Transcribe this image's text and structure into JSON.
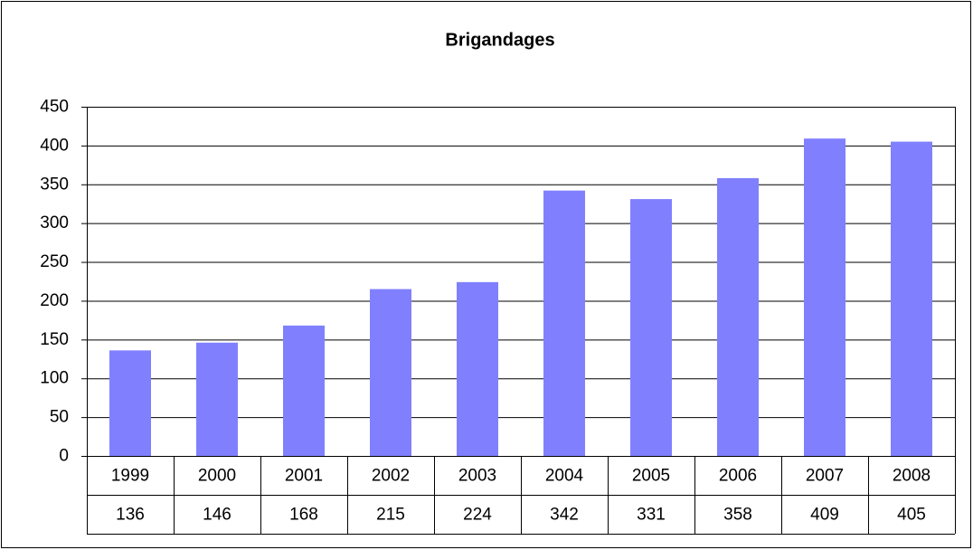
{
  "chart_data": {
    "type": "bar",
    "title": "Brigandages",
    "categories": [
      "1999",
      "2000",
      "2001",
      "2002",
      "2003",
      "2004",
      "2005",
      "2006",
      "2007",
      "2008"
    ],
    "values": [
      136,
      146,
      168,
      215,
      224,
      342,
      331,
      358,
      409,
      405
    ],
    "color": "#8080ff",
    "ylim": [
      0,
      450
    ],
    "yticks": [
      0,
      50,
      100,
      150,
      200,
      250,
      300,
      350,
      400,
      450
    ],
    "grid": true
  }
}
